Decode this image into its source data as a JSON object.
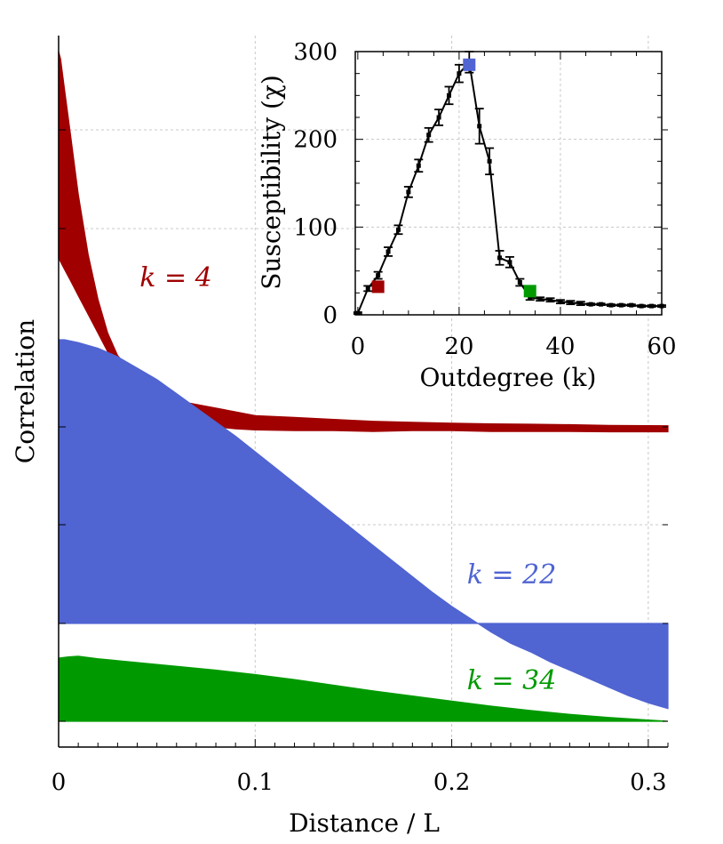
{
  "chart_data": [
    {
      "type": "area",
      "xlabel": "Distance / L",
      "ylabel": "Correlation",
      "xlim": [
        0,
        0.31
      ],
      "xticks": [
        "0",
        "0.1",
        "0.2",
        "0.3"
      ],
      "xtick_values": [
        0,
        0.1,
        0.2,
        0.3
      ],
      "grid": true,
      "series": [
        {
          "name": "k = 4",
          "label": "k = 4",
          "color": "#a00000",
          "baseline": 0,
          "x": [
            0,
            0.001,
            0.003,
            0.006,
            0.01,
            0.015,
            0.02,
            0.025,
            0.03,
            0.04,
            0.05,
            0.06,
            0.07,
            0.08,
            0.09,
            0.1,
            0.12,
            0.14,
            0.16,
            0.18,
            0.2,
            0.22,
            0.24,
            0.26,
            0.28,
            0.31
          ],
          "upper": [
            1.0,
            0.98,
            0.9,
            0.78,
            0.62,
            0.46,
            0.34,
            0.25,
            0.19,
            0.13,
            0.09,
            0.07,
            0.06,
            0.05,
            0.04,
            0.03,
            0.025,
            0.02,
            0.015,
            0.012,
            0.01,
            0.008,
            0.007,
            0.006,
            0.004,
            0.003
          ],
          "lower": [
            0.45,
            0.44,
            0.42,
            0.39,
            0.35,
            0.3,
            0.25,
            0.2,
            0.16,
            0.1,
            0.06,
            0.03,
            0.01,
            0,
            -0.005,
            -0.008,
            -0.01,
            -0.01,
            -0.012,
            -0.01,
            -0.01,
            -0.012,
            -0.012,
            -0.012,
            -0.013,
            -0.013
          ]
        },
        {
          "name": "k = 22",
          "label": "k = 22",
          "color": "#5064d2",
          "baseline": 0,
          "x": [
            0,
            0.003,
            0.01,
            0.02,
            0.03,
            0.04,
            0.05,
            0.06,
            0.07,
            0.08,
            0.09,
            0.1,
            0.11,
            0.12,
            0.13,
            0.14,
            0.15,
            0.16,
            0.17,
            0.18,
            0.19,
            0.2,
            0.21,
            0.22,
            0.23,
            0.24,
            0.25,
            0.26,
            0.27,
            0.28,
            0.29,
            0.3,
            0.31
          ],
          "upper": [
            1.0,
            1.0,
            0.99,
            0.97,
            0.94,
            0.9,
            0.86,
            0.81,
            0.76,
            0.71,
            0.66,
            0.605,
            0.55,
            0.495,
            0.44,
            0.385,
            0.33,
            0.275,
            0.22,
            0.165,
            0.11,
            0.06,
            0.015,
            -0.03,
            -0.07,
            -0.1,
            -0.135,
            -0.165,
            -0.195,
            -0.225,
            -0.255,
            -0.28,
            -0.3
          ]
        },
        {
          "name": "k = 34",
          "label": "k = 34",
          "color": "#009a00",
          "baseline": 0,
          "x": [
            0,
            0.005,
            0.01,
            0.02,
            0.03,
            0.04,
            0.05,
            0.06,
            0.07,
            0.08,
            0.1,
            0.12,
            0.14,
            0.16,
            0.18,
            0.2,
            0.22,
            0.24,
            0.26,
            0.28,
            0.3,
            0.31
          ],
          "upper": [
            1.0,
            1.02,
            1.03,
            0.99,
            0.96,
            0.93,
            0.9,
            0.87,
            0.84,
            0.81,
            0.74,
            0.66,
            0.57,
            0.48,
            0.4,
            0.32,
            0.24,
            0.17,
            0.11,
            0.06,
            0.02,
            0.0
          ]
        }
      ]
    },
    {
      "type": "line",
      "xlabel": "Outdegree (k)",
      "ylabel": "Susceptibility (χ)",
      "xlim": [
        -0.5,
        60
      ],
      "ylim": [
        0,
        300
      ],
      "xticks": [
        "0",
        "20",
        "40",
        "60"
      ],
      "xtick_values": [
        0,
        20,
        40,
        60
      ],
      "yticks": [
        "0",
        "100",
        "200",
        "300"
      ],
      "ytick_values": [
        0,
        100,
        200,
        300
      ],
      "grid": true,
      "series": [
        {
          "color": "#000000",
          "x": [
            0,
            2,
            4,
            6,
            8,
            10,
            12,
            14,
            16,
            18,
            20,
            22,
            24,
            26,
            28,
            30,
            32,
            34,
            36,
            38,
            40,
            42,
            44,
            46,
            48,
            50,
            52,
            54,
            56,
            58,
            60
          ],
          "y": [
            2,
            30,
            45,
            72,
            97,
            140,
            170,
            205,
            225,
            250,
            275,
            288,
            215,
            175,
            65,
            60,
            37,
            20,
            18,
            17,
            15,
            14,
            13,
            12,
            12,
            11,
            11,
            11,
            10,
            10,
            10
          ],
          "err": [
            1,
            3,
            4,
            5,
            5,
            6,
            7,
            8,
            9,
            10,
            10,
            12,
            20,
            15,
            8,
            6,
            4,
            3,
            2,
            2,
            2,
            2,
            2,
            1,
            1,
            1,
            1,
            1,
            1,
            1,
            1
          ]
        }
      ],
      "highlights": [
        {
          "x": 4,
          "y": 32,
          "color": "#a00000"
        },
        {
          "x": 22,
          "y": 285,
          "color": "#5064d2"
        },
        {
          "x": 34,
          "y": 27,
          "color": "#009a00"
        }
      ]
    }
  ]
}
